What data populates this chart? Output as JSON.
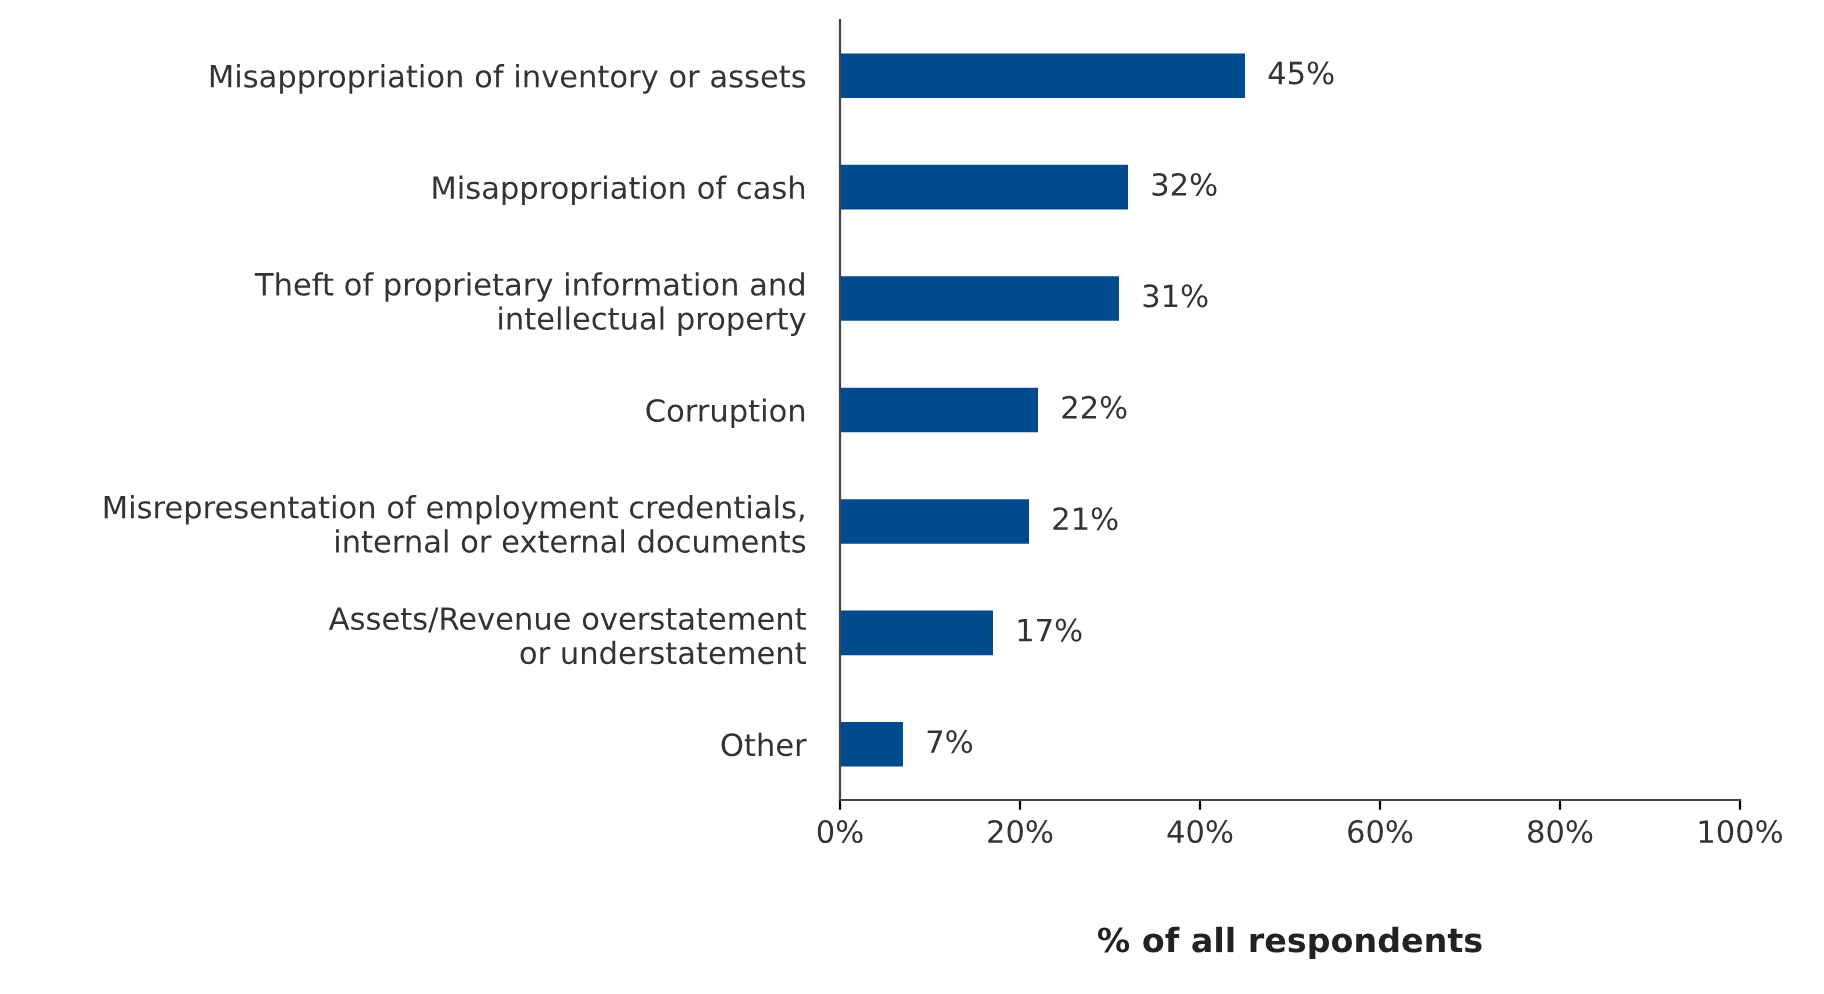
{
  "chart_data": {
    "type": "bar",
    "orientation": "horizontal",
    "categories": [
      "Misappropriation of inventory or assets",
      "Misappropriation of cash",
      "Theft of proprietary information and\nintellectual property",
      "Corruption",
      "Misrepresentation of employment credentials,\ninternal or external documents",
      "Assets/Revenue overstatement\nor understatement",
      "Other"
    ],
    "values": [
      45,
      32,
      31,
      22,
      21,
      17,
      7
    ],
    "value_labels": [
      "45%",
      "32%",
      "31%",
      "22%",
      "21%",
      "17%",
      "7%"
    ],
    "color": "#004b8d",
    "xlabel": "% of all respondents",
    "xlim": [
      0,
      100
    ],
    "xticks": [
      {
        "value": 0,
        "label": "0%"
      },
      {
        "value": 20,
        "label": "20%"
      },
      {
        "value": 40,
        "label": "40%"
      },
      {
        "value": 60,
        "label": "60%"
      },
      {
        "value": 80,
        "label": "80%"
      },
      {
        "value": 100,
        "label": "100%"
      }
    ],
    "grid": false
  }
}
